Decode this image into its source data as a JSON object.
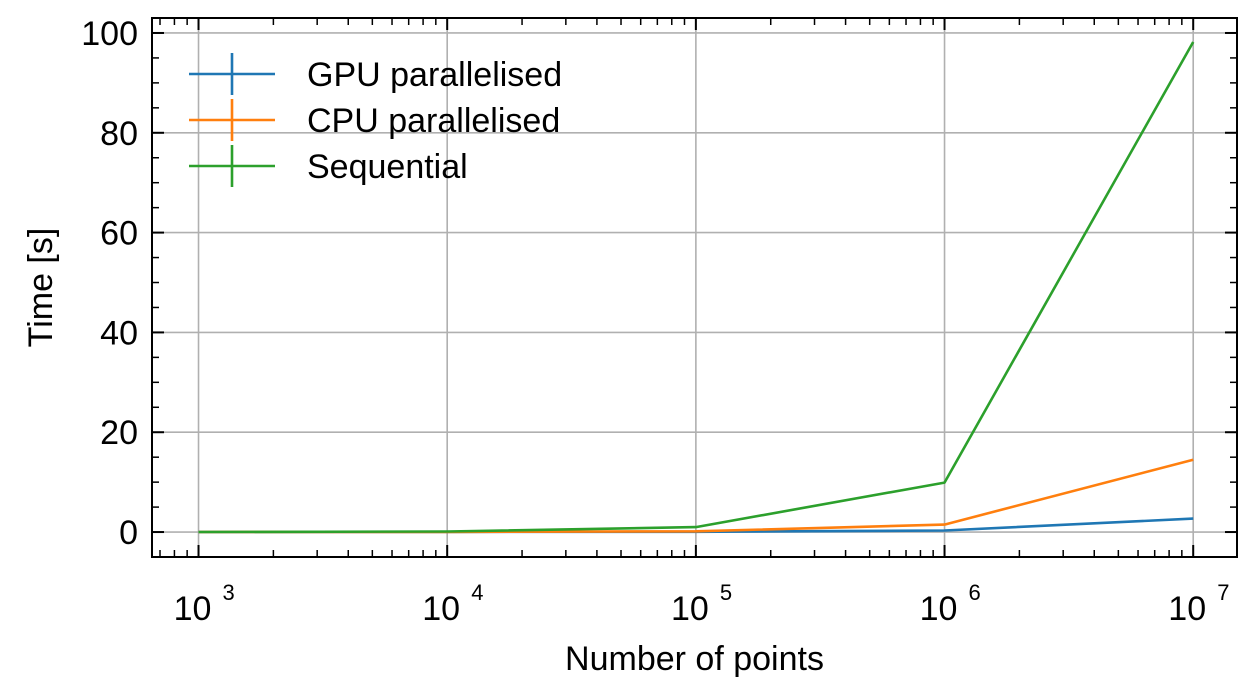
{
  "chart_data": {
    "type": "line",
    "xlabel": "Number of points",
    "ylabel": "Time [s]",
    "xscale": "log",
    "xlim": [
      650,
      15000000
    ],
    "ylim": [
      -5,
      103
    ],
    "x": [
      1000,
      10000,
      100000,
      1000000,
      10000000
    ],
    "x_ticks": [
      {
        "value": 1000,
        "base": "10",
        "exp": "3"
      },
      {
        "value": 10000,
        "base": "10",
        "exp": "4"
      },
      {
        "value": 100000,
        "base": "10",
        "exp": "5"
      },
      {
        "value": 1000000,
        "base": "10",
        "exp": "6"
      },
      {
        "value": 10000000,
        "base": "10",
        "exp": "7"
      }
    ],
    "y_ticks": [
      0,
      20,
      40,
      60,
      80,
      100
    ],
    "grid": true,
    "legend_position": "top-left",
    "series": [
      {
        "name": "GPU parallelised",
        "color": "#1f77b4",
        "values": [
          0.0,
          0.02,
          0.05,
          0.3,
          2.7
        ]
      },
      {
        "name": "CPU parallelised",
        "color": "#ff7f0e",
        "values": [
          0.0,
          0.03,
          0.15,
          1.5,
          14.5
        ]
      },
      {
        "name": "Sequential",
        "color": "#2ca02c",
        "values": [
          0.0,
          0.1,
          1.0,
          9.9,
          98.2
        ]
      }
    ]
  }
}
